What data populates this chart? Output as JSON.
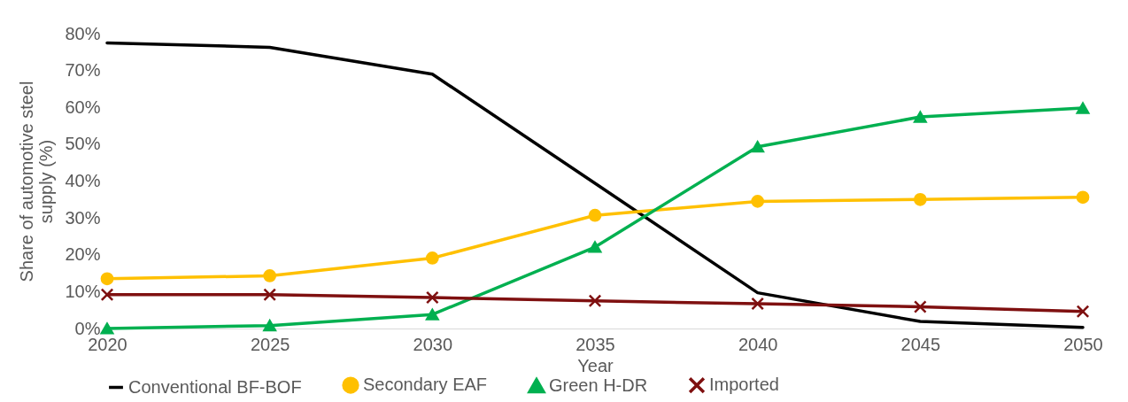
{
  "chart_data": {
    "type": "line",
    "xlabel": "Year",
    "ylabel": "Share of automotive steel supply (%)",
    "x": [
      2020,
      2025,
      2030,
      2035,
      2040,
      2045,
      2050
    ],
    "xlim": [
      2020,
      2050
    ],
    "xticks": [
      2020,
      2025,
      2030,
      2035,
      2040,
      2045,
      2050
    ],
    "ylim": [
      0,
      80
    ],
    "yticks": [
      {
        "value": 0,
        "label": "0%"
      },
      {
        "value": 10,
        "label": "10%"
      },
      {
        "value": 20,
        "label": "20%"
      },
      {
        "value": 30,
        "label": "30%"
      },
      {
        "value": 40,
        "label": "40%"
      },
      {
        "value": 50,
        "label": "50%"
      },
      {
        "value": 60,
        "label": "60%"
      },
      {
        "value": 70,
        "label": "70%"
      },
      {
        "value": 80,
        "label": "80%"
      }
    ],
    "grid": false,
    "legend": "bottom",
    "series": [
      {
        "name": "Conventional BF-BOF",
        "color": "#000000",
        "marker": "none",
        "values": [
          77.5,
          76.3,
          69,
          39.4,
          9.7,
          1.9,
          0.3
        ]
      },
      {
        "name": "Secondary EAF",
        "color": "#ffc000",
        "marker": "circle",
        "values": [
          13.5,
          14.3,
          19.1,
          30.7,
          34.5,
          35,
          35.6
        ]
      },
      {
        "name": "Green H-DR",
        "color": "#00b050",
        "marker": "triangle",
        "values": [
          0,
          0.8,
          3.8,
          22.1,
          49.3,
          57.4,
          59.8
        ]
      },
      {
        "name": "Imported",
        "color": "#7f1010",
        "marker": "cross",
        "values": [
          9.2,
          9.2,
          8.4,
          7.5,
          6.7,
          5.9,
          4.6
        ]
      }
    ]
  }
}
